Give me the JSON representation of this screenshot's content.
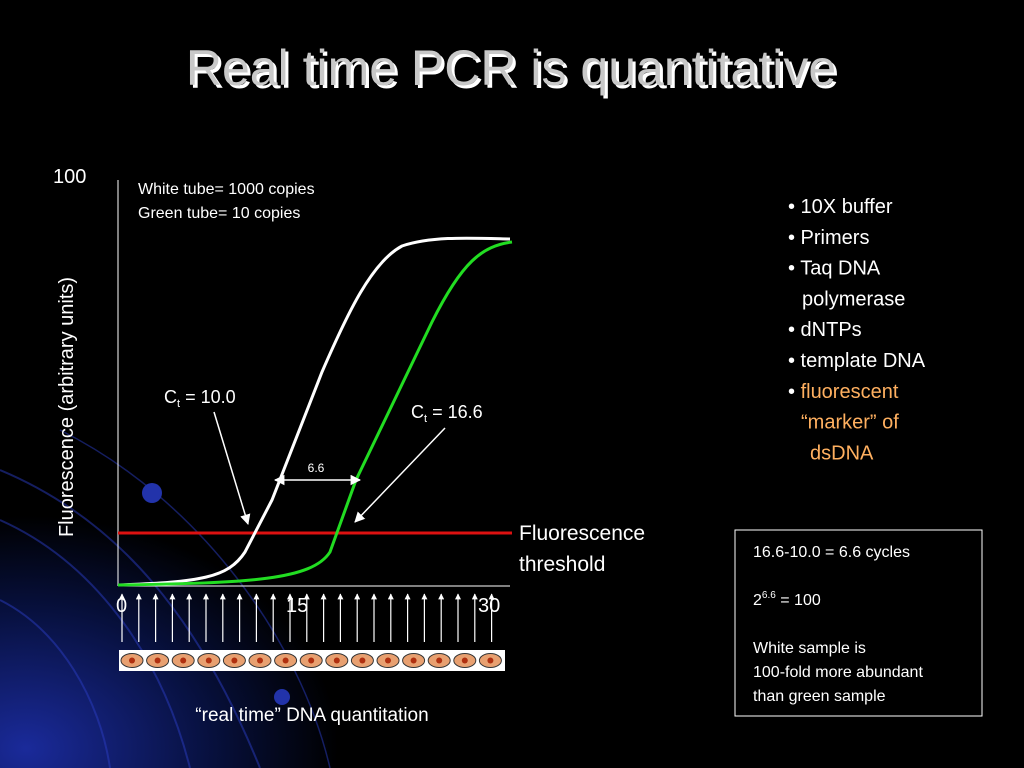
{
  "title": "Real time PCR is quantitative",
  "graph": {
    "y_top": "100",
    "y_axis_label": "Fluorescence (arbitrary units)",
    "x_ticks": [
      "0",
      "15",
      "30"
    ],
    "legend": [
      "White tube= 1000 copies",
      "Green tube= 10 copies"
    ],
    "ct_white": {
      "symbol": "C",
      "sub": "t",
      "rest": " = 10.0"
    },
    "ct_green": {
      "symbol": "C",
      "sub": "t",
      "rest": " = 16.6"
    },
    "gap": "6.6",
    "threshold_label": [
      "Fluorescence",
      "threshold"
    ],
    "caption": "“real time” DNA quantitation"
  },
  "bullets": [
    {
      "text": "• 10X buffer",
      "color": "#ffffff",
      "indent": 0
    },
    {
      "text": "• Primers",
      "color": "#ffffff",
      "indent": 0
    },
    {
      "text": "• Taq DNA",
      "color": "#ffffff",
      "indent": 0
    },
    {
      "text": "polymerase",
      "color": "#ffffff",
      "indent": 14
    },
    {
      "text": "• dNTPs",
      "color": "#ffffff",
      "indent": 0
    },
    {
      "text": "• template DNA",
      "color": "#ffffff",
      "indent": 0
    },
    {
      "text": "• fluorescent",
      "color": "#ffffff",
      "accent": "#ffb060",
      "indent": 0
    },
    {
      "text": "“marker” of",
      "color": "#ffb060",
      "indent": 13
    },
    {
      "text": "dsDNA",
      "color": "#ffb060",
      "indent": 22
    }
  ],
  "calc": {
    "line1": "16.6-10.0 = 6.6 cycles",
    "power": {
      "base": "2",
      "exp": "6.6",
      "rest": " = 100"
    },
    "lines": [
      "White sample is",
      "100-fold more abundant",
      "than green sample"
    ]
  }
}
